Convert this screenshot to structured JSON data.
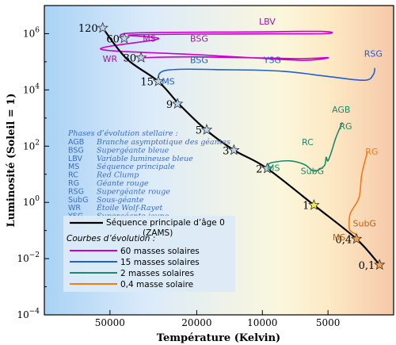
{
  "chart_data": {
    "type": "line",
    "title": "",
    "xlabel": "Température (Kelvin)",
    "ylabel": "Luminosité (Soleil = 1)",
    "x_scale": "log-reversed",
    "y_scale": "log",
    "xlim": [
      100000,
      2500
    ],
    "ylim": [
      0.0001,
      10000000
    ],
    "x_ticks": [
      {
        "value": 50000,
        "label": "50000"
      },
      {
        "value": 20000,
        "label": "20000"
      },
      {
        "value": 10000,
        "label": "10000"
      },
      {
        "value": 5000,
        "label": "5000"
      }
    ],
    "y_ticks": [
      {
        "value": 0.0001,
        "base": "10",
        "exp": "−4"
      },
      {
        "value": 0.01,
        "base": "10",
        "exp": "−2"
      },
      {
        "value": 1,
        "base": "10",
        "exp": "0"
      },
      {
        "value": 100,
        "base": "10",
        "exp": "2"
      },
      {
        "value": 10000,
        "base": "10",
        "exp": "4"
      },
      {
        "value": 1000000,
        "base": "10",
        "exp": "6"
      }
    ],
    "zams": {
      "name": "Séquence principale d'âge 0 (ZAMS)",
      "color": "#000000",
      "points": [
        {
          "x": 54000,
          "y": 1600000
        },
        {
          "x": 42000,
          "y": 130000
        },
        {
          "x": 30000,
          "y": 20000
        },
        {
          "x": 24000,
          "y": 3000
        },
        {
          "x": 18000,
          "y": 360
        },
        {
          "x": 13500,
          "y": 72
        },
        {
          "x": 9600,
          "y": 17
        },
        {
          "x": 5800,
          "y": 0.8
        },
        {
          "x": 3700,
          "y": 0.05
        },
        {
          "x": 2900,
          "y": 0.006
        }
      ]
    },
    "stars": [
      {
        "label": "120",
        "x": 54000,
        "y": 1600000
      },
      {
        "label": "60",
        "x": 43000,
        "y": 680000
      },
      {
        "label": "30",
        "x": 36000,
        "y": 140000
      },
      {
        "label": "15",
        "x": 30000,
        "y": 20000
      },
      {
        "label": "9",
        "x": 24500,
        "y": 3200
      },
      {
        "label": "5",
        "x": 18000,
        "y": 380
      },
      {
        "label": "3",
        "x": 13500,
        "y": 72
      },
      {
        "label": "2",
        "x": 9500,
        "y": 16
      },
      {
        "label": "1",
        "x": 5800,
        "y": 0.8
      },
      {
        "label": "0,4",
        "x": 3700,
        "y": 0.05
      },
      {
        "label": "0,1",
        "x": 2900,
        "y": 0.006
      }
    ],
    "series": [
      {
        "name": "60 masses solaires",
        "color": "#cc00cc",
        "points": [
          {
            "x": 43000,
            "y": 680000
          },
          {
            "x": 40000,
            "y": 1050000
          },
          {
            "x": 12000,
            "y": 1150000
          },
          {
            "x": 5400,
            "y": 1200000
          },
          {
            "x": 5200,
            "y": 1000000
          },
          {
            "x": 12000,
            "y": 980000
          },
          {
            "x": 40000,
            "y": 900000
          },
          {
            "x": 30000,
            "y": 650000
          },
          {
            "x": 55000,
            "y": 280000
          },
          {
            "x": 20000,
            "y": 180000
          },
          {
            "x": 8000,
            "y": 120000
          },
          {
            "x": 6000,
            "y": 115000
          },
          {
            "x": 5000,
            "y": 140000
          },
          {
            "x": 7000,
            "y": 130000
          },
          {
            "x": 20000,
            "y": 150000
          },
          {
            "x": 36000,
            "y": 140000
          }
        ]
      },
      {
        "name": "15 masses solaires",
        "color": "#1f5fd0",
        "points": [
          {
            "x": 30000,
            "y": 20000
          },
          {
            "x": 27500,
            "y": 50000
          },
          {
            "x": 14000,
            "y": 52000
          },
          {
            "x": 8000,
            "y": 46000
          },
          {
            "x": 5000,
            "y": 30000
          },
          {
            "x": 3400,
            "y": 22000
          },
          {
            "x": 3100,
            "y": 35000
          },
          {
            "x": 3050,
            "y": 60000
          }
        ]
      },
      {
        "name": "2 masses solaires",
        "color": "#1a8a6a",
        "points": [
          {
            "x": 9500,
            "y": 16
          },
          {
            "x": 9200,
            "y": 25
          },
          {
            "x": 7500,
            "y": 30
          },
          {
            "x": 6400,
            "y": 22
          },
          {
            "x": 5800,
            "y": 13
          },
          {
            "x": 5200,
            "y": 20
          },
          {
            "x": 5100,
            "y": 40
          },
          {
            "x": 5000,
            "y": 30
          },
          {
            "x": 4800,
            "y": 70
          },
          {
            "x": 4600,
            "y": 200
          },
          {
            "x": 4300,
            "y": 700
          }
        ]
      },
      {
        "name": "0,4 masse solaire",
        "color": "#f07a1a",
        "points": [
          {
            "x": 3700,
            "y": 0.05
          },
          {
            "x": 3700,
            "y": 0.07
          },
          {
            "x": 3900,
            "y": 0.09
          },
          {
            "x": 4000,
            "y": 0.13
          },
          {
            "x": 3950,
            "y": 0.4
          },
          {
            "x": 3600,
            "y": 1.5
          },
          {
            "x": 3500,
            "y": 10
          },
          {
            "x": 3300,
            "y": 60
          }
        ]
      }
    ],
    "phase_labels": [
      {
        "text": "LBV",
        "x": 9500,
        "y": 2100000,
        "color": "#9a1a9a"
      },
      {
        "text": "MS",
        "x": 33000,
        "y": 520000,
        "color": "#9a1a9a"
      },
      {
        "text": "BSG",
        "x": 19500,
        "y": 520000,
        "color": "#9a1a9a"
      },
      {
        "text": "WR",
        "x": 50000,
        "y": 100000,
        "color": "#9a1a9a"
      },
      {
        "text": "BSG",
        "x": 19500,
        "y": 90000,
        "color": "#1f5fd0"
      },
      {
        "text": "YSG",
        "x": 9000,
        "y": 90000,
        "color": "#1f5fd0"
      },
      {
        "text": "RSG",
        "x": 3100,
        "y": 150000,
        "color": "#1f5fd0"
      },
      {
        "text": "MS",
        "x": 27000,
        "y": 15500,
        "color": "#1f5fd0"
      },
      {
        "text": "AGB",
        "x": 4350,
        "y": 1550,
        "color": "#1a8a6a"
      },
      {
        "text": "RG",
        "x": 4150,
        "y": 400,
        "color": "#1a8a6a"
      },
      {
        "text": "RC",
        "x": 6200,
        "y": 110,
        "color": "#1a8a6a"
      },
      {
        "text": "SubG",
        "x": 5900,
        "y": 10,
        "color": "#1a8a6a"
      },
      {
        "text": "MS",
        "x": 8900,
        "y": 13,
        "color": "#1a8a6a"
      },
      {
        "text": "RG",
        "x": 3150,
        "y": 50,
        "color": "#f07a1a"
      },
      {
        "text": "SubG",
        "x": 3400,
        "y": 0.14,
        "color": "#c06010"
      },
      {
        "text": "MS",
        "x": 4450,
        "y": 0.045,
        "color": "#c06010"
      }
    ],
    "phase_legend": {
      "title": "Phases d’évolution stellaire :",
      "entries": [
        {
          "abbr": "AGB",
          "desc": "Branche asymptotique des géantes"
        },
        {
          "abbr": "BSG",
          "desc": "Supergéante bleue"
        },
        {
          "abbr": "LBV",
          "desc": "Variable lumineuse bleue"
        },
        {
          "abbr": "MS",
          "desc": "Séquence principale"
        },
        {
          "abbr": "RC",
          "desc": "Red Clump"
        },
        {
          "abbr": "RG",
          "desc": "Géante rouge"
        },
        {
          "abbr": "RSG",
          "desc": "Supergéante rouge"
        },
        {
          "abbr": "SubG",
          "desc": "Sous-géante"
        },
        {
          "abbr": "WR",
          "desc": "Étoile Wolf-Rayet"
        },
        {
          "abbr": "YSG",
          "desc": "Supergéante jaune"
        }
      ]
    },
    "key": {
      "zams_line1": "Séquence principale d’âge 0",
      "zams_line2": "(ZAMS)",
      "curves_title": "Courbes d’évolution :",
      "curves": [
        {
          "label": "60 masses solaires",
          "color": "#cc00cc"
        },
        {
          "label": "15 masses solaires",
          "color": "#1f5fd0"
        },
        {
          "label": "2 masses solaires",
          "color": "#1a8a6a"
        },
        {
          "label": "0,4 masse solaire",
          "color": "#f07a1a"
        }
      ]
    },
    "background_gradient": [
      "#a9d2f5",
      "#dcebfa",
      "#fbf7dc",
      "#fde9c4",
      "#f6c8a8"
    ],
    "star_colors": {
      "hot": "#b9d3ec",
      "sun": "#f3f04a",
      "cool": "#f4a34a"
    }
  }
}
